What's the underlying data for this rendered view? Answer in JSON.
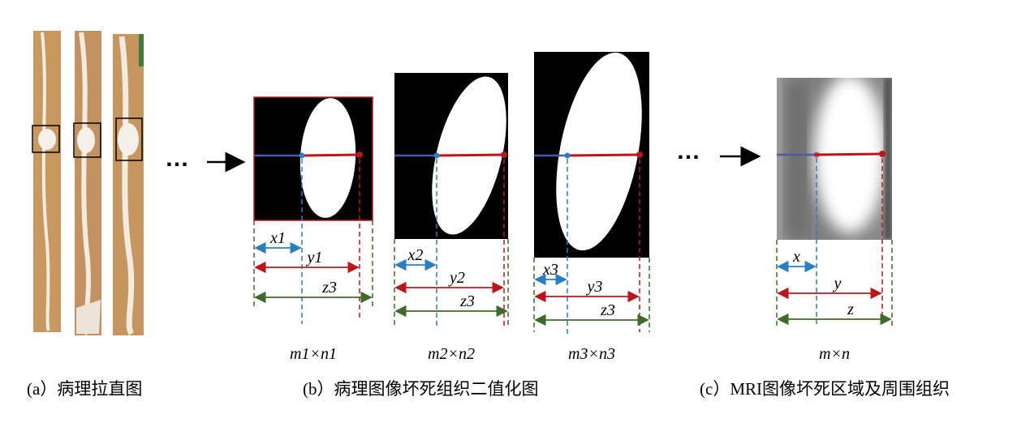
{
  "ellipsis": "…",
  "pathology_images": [
    {
      "x_label": "x1",
      "y_label": "y1",
      "z_label": "z3",
      "size_label": "m1×n1"
    },
    {
      "x_label": "x2",
      "y_label": "y2",
      "z_label": "z3",
      "size_label": "m2×n2"
    },
    {
      "x_label": "x3",
      "y_label": "y3",
      "z_label": "z3",
      "size_label": "m3×n3"
    }
  ],
  "mri_image": {
    "x_label": "x",
    "y_label": "y",
    "z_label": "z",
    "size_label": "m×n"
  },
  "captions": [
    "(a）病理拉直图",
    "(b）病理图像坏死组织二值化图",
    "(c）MRI图像坏死区域及周围组织"
  ]
}
